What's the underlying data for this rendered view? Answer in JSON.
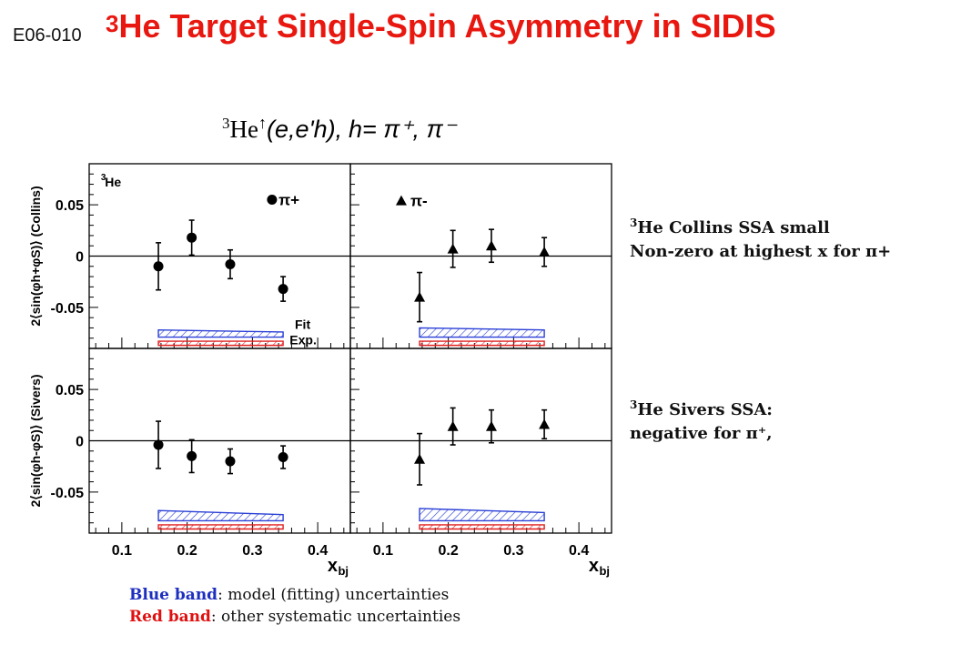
{
  "header": {
    "exp_code": "E06-010",
    "title_sup": "3",
    "title_text": "He Target Single-Spin Asymmetry in SIDIS"
  },
  "reaction": {
    "base": "He",
    "sup": "3",
    "process": "(e,e'h),",
    "h_def": "h= π⁺, π⁻"
  },
  "notes": {
    "collins_sup": "3",
    "collins_line1": "He Collins SSA small",
    "collins_line2": "Non-zero at highest x for π+",
    "sivers_sup": "3",
    "sivers_line1": "He Sivers SSA:",
    "sivers_line2": "negative for π⁺,"
  },
  "legend_notes": {
    "blue_key": "Blue band",
    "blue_text": ": model (fitting) uncertainties",
    "red_key": "Red band",
    "red_text": ": other systematic uncertainties"
  },
  "colors": {
    "title": "#e8170f",
    "blue_band": "#2a3fd6",
    "red_band": "#e02020",
    "marker": "#000000"
  },
  "chart_data": {
    "type": "scatter",
    "x_axis": {
      "label": "x",
      "label_sub": "bj",
      "lim": [
        0.05,
        0.45
      ],
      "ticks": [
        0.1,
        0.2,
        0.3,
        0.4
      ],
      "tick_labels": [
        "0.1",
        "0.2",
        "0.3",
        "0.4"
      ]
    },
    "y_axis": {
      "lim": [
        -0.09,
        0.09
      ],
      "ticks": [
        -0.05,
        0,
        0.05
      ],
      "tick_labels": [
        "-0.05",
        "0",
        "0.05"
      ]
    },
    "grid": false,
    "panels": [
      {
        "row": 0,
        "col": 0,
        "ylabel": "2⟨sin(φh+φS)⟩ (Collins)",
        "target_label": "He",
        "target_sup": "3",
        "series": {
          "name": "π+",
          "marker": "circle"
        },
        "x": [
          0.156,
          0.207,
          0.266,
          0.347
        ],
        "y": [
          -0.01,
          0.018,
          -0.008,
          -0.032
        ],
        "err": [
          0.023,
          0.017,
          0.014,
          0.012
        ],
        "fit_band": [
          [
            0.156,
            -0.072,
            -0.079
          ],
          [
            0.347,
            -0.074,
            -0.079
          ]
        ],
        "exp_band": [
          [
            0.156,
            -0.083,
            -0.087
          ],
          [
            0.347,
            -0.083,
            -0.087
          ]
        ],
        "band_labels": [
          "Fit",
          "Exp."
        ]
      },
      {
        "row": 0,
        "col": 1,
        "ylabel": "",
        "series": {
          "name": "π-",
          "marker": "triangle"
        },
        "x": [
          0.156,
          0.207,
          0.266,
          0.347
        ],
        "y": [
          -0.04,
          0.007,
          0.01,
          0.004
        ],
        "err": [
          0.024,
          0.018,
          0.016,
          0.014
        ],
        "fit_band": [
          [
            0.156,
            -0.07,
            -0.079
          ],
          [
            0.347,
            -0.072,
            -0.079
          ]
        ],
        "exp_band": [
          [
            0.156,
            -0.083,
            -0.087
          ],
          [
            0.347,
            -0.083,
            -0.087
          ]
        ]
      },
      {
        "row": 1,
        "col": 0,
        "ylabel": "2⟨sin(φh-φS)⟩ (Sivers)",
        "series": {
          "name": "π+",
          "marker": "circle"
        },
        "x": [
          0.156,
          0.207,
          0.266,
          0.347
        ],
        "y": [
          -0.004,
          -0.015,
          -0.02,
          -0.016
        ],
        "err": [
          0.023,
          0.016,
          0.012,
          0.011
        ],
        "fit_band": [
          [
            0.156,
            -0.068,
            -0.078
          ],
          [
            0.347,
            -0.072,
            -0.078
          ]
        ],
        "exp_band": [
          [
            0.156,
            -0.082,
            -0.086
          ],
          [
            0.347,
            -0.082,
            -0.086
          ]
        ]
      },
      {
        "row": 1,
        "col": 1,
        "ylabel": "",
        "series": {
          "name": "π-",
          "marker": "triangle"
        },
        "x": [
          0.156,
          0.207,
          0.266,
          0.347
        ],
        "y": [
          -0.018,
          0.014,
          0.014,
          0.016
        ],
        "err": [
          0.025,
          0.018,
          0.016,
          0.014
        ],
        "fit_band": [
          [
            0.156,
            -0.066,
            -0.078
          ],
          [
            0.347,
            -0.07,
            -0.078
          ]
        ],
        "exp_band": [
          [
            0.156,
            -0.082,
            -0.086
          ],
          [
            0.347,
            -0.082,
            -0.086
          ]
        ]
      }
    ]
  }
}
